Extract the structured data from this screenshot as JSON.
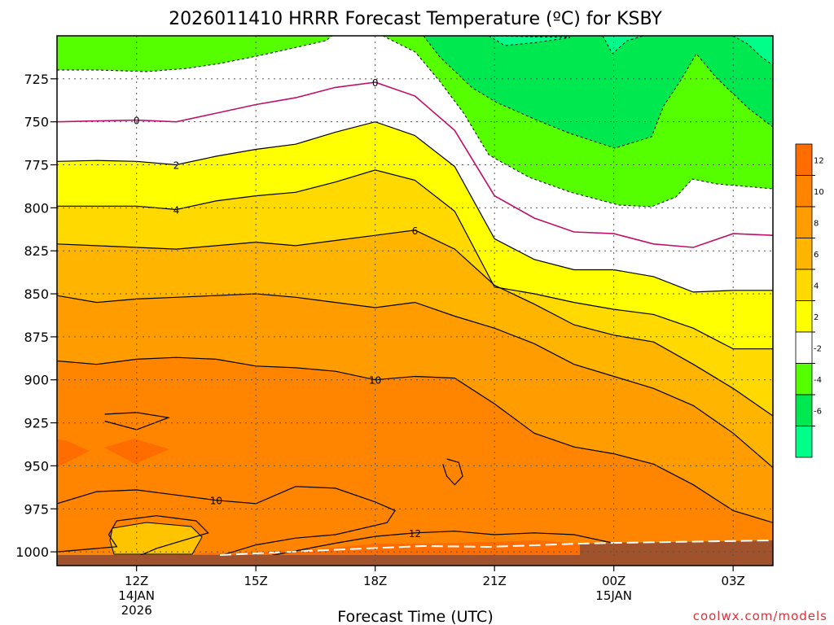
{
  "chart_data": {
    "type": "heatmap",
    "title": "2026011410 HRRR Forecast Temperature (ºC) for KSBY",
    "xlabel": "Forecast Time (UTC)",
    "ylabel": "",
    "credit": "coolwx.com/models",
    "x_ticks": [
      {
        "hour": 12,
        "label": "12Z",
        "sub1": "14JAN",
        "sub2": "2026"
      },
      {
        "hour": 15,
        "label": "15Z",
        "sub1": "",
        "sub2": ""
      },
      {
        "hour": 18,
        "label": "18Z",
        "sub1": "",
        "sub2": ""
      },
      {
        "hour": 21,
        "label": "21Z",
        "sub1": "",
        "sub2": ""
      },
      {
        "hour": 24,
        "label": "00Z",
        "sub1": "15JAN",
        "sub2": ""
      },
      {
        "hour": 27,
        "label": "03Z",
        "sub1": "",
        "sub2": ""
      }
    ],
    "y_ticks": [
      725,
      750,
      775,
      800,
      825,
      850,
      875,
      900,
      925,
      950,
      975,
      1000
    ],
    "xlim": [
      10,
      28
    ],
    "ylim_pressure_hpa": [
      1008,
      700
    ],
    "colorbar": {
      "ticks": [
        "12",
        "10",
        "8",
        "6",
        "4",
        "2",
        "-2",
        "-4",
        "-6"
      ],
      "colors": [
        "#ff6c00",
        "#ff8400",
        "#ff9c00",
        "#ffb400",
        "#ffd900",
        "#ffff00",
        "#ffffff",
        "#55ff00",
        "#00e850",
        "#00ff88"
      ]
    },
    "contours": [
      {
        "level": 0,
        "color": "#c0106a",
        "points": [
          [
            10,
            750
          ],
          [
            11,
            749.5
          ],
          [
            12,
            749
          ],
          [
            13,
            750
          ],
          [
            14,
            745
          ],
          [
            15,
            740
          ],
          [
            16,
            736
          ],
          [
            17,
            730
          ],
          [
            18,
            727
          ],
          [
            19,
            735
          ],
          [
            20,
            755
          ],
          [
            21,
            793
          ],
          [
            22,
            806
          ],
          [
            23,
            814
          ],
          [
            24,
            815
          ],
          [
            25,
            821
          ],
          [
            26,
            823
          ],
          [
            27,
            815
          ],
          [
            28,
            816
          ]
        ]
      },
      {
        "level": 2,
        "color": "#000000",
        "points": [
          [
            10,
            773
          ],
          [
            11,
            772.5
          ],
          [
            12,
            773
          ],
          [
            13,
            775
          ],
          [
            14,
            770
          ],
          [
            15,
            766
          ],
          [
            16,
            763
          ],
          [
            17,
            756
          ],
          [
            18,
            750
          ],
          [
            19,
            758
          ],
          [
            20,
            776
          ],
          [
            21,
            818
          ],
          [
            22,
            830
          ],
          [
            23,
            836
          ],
          [
            24,
            836
          ],
          [
            25,
            840
          ],
          [
            26,
            849
          ],
          [
            27,
            848
          ],
          [
            28,
            848
          ]
        ]
      },
      {
        "level": 4,
        "color": "#000000",
        "points": [
          [
            10,
            799
          ],
          [
            11,
            799
          ],
          [
            12,
            799
          ],
          [
            13,
            801
          ],
          [
            14,
            796
          ],
          [
            15,
            793
          ],
          [
            16,
            791
          ],
          [
            17,
            785
          ],
          [
            18,
            778
          ],
          [
            19,
            784
          ],
          [
            20,
            802
          ],
          [
            21,
            846
          ],
          [
            22,
            850
          ],
          [
            23,
            855
          ],
          [
            24,
            859
          ],
          [
            25,
            862
          ],
          [
            26,
            870
          ],
          [
            27,
            882
          ],
          [
            28,
            882
          ]
        ]
      },
      {
        "level": 6,
        "color": "#000000",
        "points": [
          [
            10,
            821
          ],
          [
            11,
            822
          ],
          [
            12,
            823
          ],
          [
            13,
            824
          ],
          [
            14,
            822
          ],
          [
            15,
            820
          ],
          [
            16,
            822
          ],
          [
            17,
            819
          ],
          [
            18,
            816
          ],
          [
            19,
            813
          ],
          [
            20,
            824
          ],
          [
            21,
            845
          ],
          [
            22,
            856
          ],
          [
            23,
            868
          ],
          [
            24,
            874
          ],
          [
            25,
            878
          ],
          [
            26,
            891
          ],
          [
            27,
            905
          ],
          [
            28,
            921
          ]
        ]
      },
      {
        "level": 8,
        "color": "#000000",
        "points": [
          [
            10,
            851
          ],
          [
            11,
            855
          ],
          [
            12,
            853
          ],
          [
            13,
            852
          ],
          [
            14,
            851
          ],
          [
            15,
            850
          ],
          [
            16,
            852
          ],
          [
            17,
            855
          ],
          [
            18,
            858
          ],
          [
            19,
            855
          ],
          [
            20,
            863
          ],
          [
            21,
            870
          ],
          [
            22,
            879
          ],
          [
            23,
            891
          ],
          [
            24,
            898
          ],
          [
            25,
            905
          ],
          [
            26,
            915
          ],
          [
            27,
            931
          ],
          [
            28,
            951
          ]
        ]
      },
      {
        "level": 10,
        "color": "#000000",
        "points": [
          [
            10,
            889
          ],
          [
            11,
            891
          ],
          [
            12,
            888
          ],
          [
            13,
            887
          ],
          [
            14,
            888
          ],
          [
            15,
            892
          ],
          [
            16,
            893
          ],
          [
            17,
            895
          ],
          [
            18,
            900
          ],
          [
            19,
            898
          ],
          [
            20,
            899
          ],
          [
            21,
            914
          ],
          [
            22,
            931
          ],
          [
            23,
            939
          ],
          [
            24,
            943
          ],
          [
            25,
            949
          ],
          [
            26,
            961
          ],
          [
            27,
            976
          ],
          [
            28,
            983
          ]
        ]
      },
      {
        "level": 10,
        "color": "#000000",
        "points": [
          [
            10,
            972
          ],
          [
            11,
            965
          ],
          [
            12,
            964
          ],
          [
            13,
            967
          ],
          [
            14,
            970
          ],
          [
            15,
            972
          ],
          [
            15.5,
            967
          ],
          [
            16,
            962
          ],
          [
            17,
            963
          ],
          [
            18,
            971
          ],
          [
            18.5,
            976
          ],
          [
            18.3,
            983
          ],
          [
            17,
            990
          ],
          [
            16,
            992
          ],
          [
            15,
            996
          ],
          [
            14,
            1003
          ],
          [
            13,
            1003
          ],
          [
            12,
            1003
          ],
          [
            12.5,
            998
          ],
          [
            13.8,
            989
          ],
          [
            13.5,
            982
          ],
          [
            12.5,
            979
          ],
          [
            11.5,
            982
          ],
          [
            11.3,
            990
          ],
          [
            11.5,
            997
          ],
          [
            10,
            1000
          ]
        ]
      },
      {
        "level": 12,
        "color": "#000000",
        "points": [
          [
            15.2,
            1003
          ],
          [
            17,
            995
          ],
          [
            18,
            991
          ],
          [
            19,
            989
          ],
          [
            20,
            988
          ],
          [
            21,
            990
          ],
          [
            22,
            989
          ],
          [
            23,
            990
          ],
          [
            24,
            995
          ],
          [
            25,
            995
          ]
        ]
      },
      {
        "level": 12,
        "color": "#000000",
        "points": [
          [
            11.2,
            920
          ],
          [
            12,
            919
          ],
          [
            12.8,
            922
          ],
          [
            12,
            929
          ],
          [
            11.2,
            924
          ]
        ]
      },
      {
        "level": 10,
        "color": "#000000",
        "points": [
          [
            19.8,
            946
          ],
          [
            20.1,
            948
          ],
          [
            20.2,
            956
          ],
          [
            20,
            961
          ],
          [
            19.8,
            956
          ],
          [
            19.7,
            949
          ]
        ]
      }
    ],
    "contour_labels": [
      {
        "hour": 12,
        "p": 749,
        "text": "0"
      },
      {
        "hour": 18,
        "p": 727,
        "text": "0"
      },
      {
        "hour": 13,
        "p": 775,
        "text": "2"
      },
      {
        "hour": 13,
        "p": 801,
        "text": "4"
      },
      {
        "hour": 19,
        "p": 813,
        "text": "6"
      },
      {
        "hour": 18,
        "p": 900,
        "text": "10"
      },
      {
        "hour": 14,
        "p": 970,
        "text": "10"
      },
      {
        "hour": 19,
        "p": 989,
        "text": "12"
      }
    ]
  }
}
